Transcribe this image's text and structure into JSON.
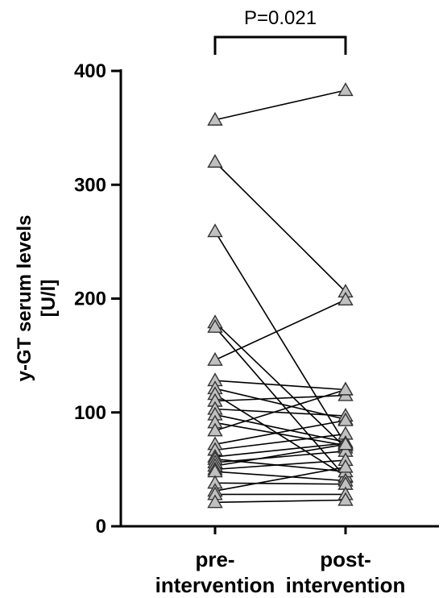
{
  "chart_data": {
    "type": "scatter",
    "ylabel_line1": "y-GT serum levels",
    "ylabel_line2": "[U/l]",
    "categories": [
      {
        "line1": "pre-",
        "line2": "intervention"
      },
      {
        "line1": "post-",
        "line2": "intervention"
      }
    ],
    "y_ticks": [
      "0",
      "100",
      "200",
      "300",
      "400"
    ],
    "ylim": [
      0,
      400
    ],
    "significance": "P=0.021",
    "marker": "triangle",
    "marker_color": "#c0c0c0",
    "pairs": [
      {
        "pre": 357,
        "post": 383
      },
      {
        "pre": 320,
        "post": 206
      },
      {
        "pre": 259,
        "post": 72
      },
      {
        "pre": 179,
        "post": 69
      },
      {
        "pre": 175,
        "post": 43
      },
      {
        "pre": 146,
        "post": 199
      },
      {
        "pre": 128,
        "post": 120
      },
      {
        "pre": 121,
        "post": 94
      },
      {
        "pre": 116,
        "post": 44
      },
      {
        "pre": 110,
        "post": 115
      },
      {
        "pre": 103,
        "post": 97
      },
      {
        "pre": 98,
        "post": 74
      },
      {
        "pre": 91,
        "post": 71
      },
      {
        "pre": 84,
        "post": 120
      },
      {
        "pre": 72,
        "post": 93
      },
      {
        "pre": 67,
        "post": 81
      },
      {
        "pre": 61,
        "post": 73
      },
      {
        "pre": 59,
        "post": 48
      },
      {
        "pre": 56,
        "post": 66
      },
      {
        "pre": 53,
        "post": 72
      },
      {
        "pre": 50,
        "post": 58
      },
      {
        "pre": 48,
        "post": 40
      },
      {
        "pre": 38,
        "post": 37
      },
      {
        "pre": 31,
        "post": 52
      },
      {
        "pre": 28,
        "post": 28
      },
      {
        "pre": 21,
        "post": 23
      }
    ]
  }
}
